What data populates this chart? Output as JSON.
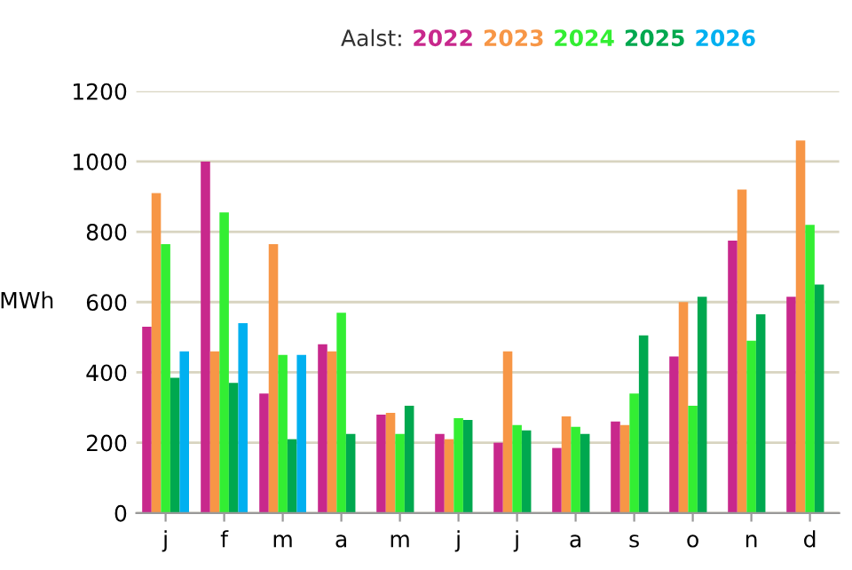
{
  "chart_data": {
    "type": "bar",
    "title": "Aalst:",
    "ylabel": "MWh",
    "categories": [
      "j",
      "f",
      "m",
      "a",
      "m",
      "j",
      "j",
      "a",
      "s",
      "o",
      "n",
      "d"
    ],
    "series": [
      {
        "name": "2022",
        "color": "#c8288c",
        "values": [
          530,
          1000,
          340,
          480,
          280,
          225,
          200,
          185,
          260,
          445,
          775,
          615
        ]
      },
      {
        "name": "2023",
        "color": "#f79646",
        "values": [
          910,
          460,
          765,
          460,
          285,
          210,
          460,
          275,
          250,
          600,
          920,
          1060
        ]
      },
      {
        "name": "2024",
        "color": "#33ee33",
        "values": [
          765,
          855,
          450,
          570,
          225,
          270,
          250,
          245,
          340,
          305,
          490,
          820
        ]
      },
      {
        "name": "2025",
        "color": "#00a84f",
        "values": [
          385,
          370,
          210,
          225,
          305,
          265,
          235,
          225,
          505,
          615,
          565,
          650
        ]
      },
      {
        "name": "2026",
        "color": "#00b0f0",
        "values": [
          460,
          540,
          450,
          null,
          null,
          null,
          null,
          null,
          null,
          null,
          null,
          null
        ]
      }
    ],
    "ylim": [
      0,
      1200
    ],
    "yticks": [
      0,
      200,
      400,
      600,
      800,
      1000,
      1200
    ],
    "grid": "y",
    "legend": "top"
  }
}
